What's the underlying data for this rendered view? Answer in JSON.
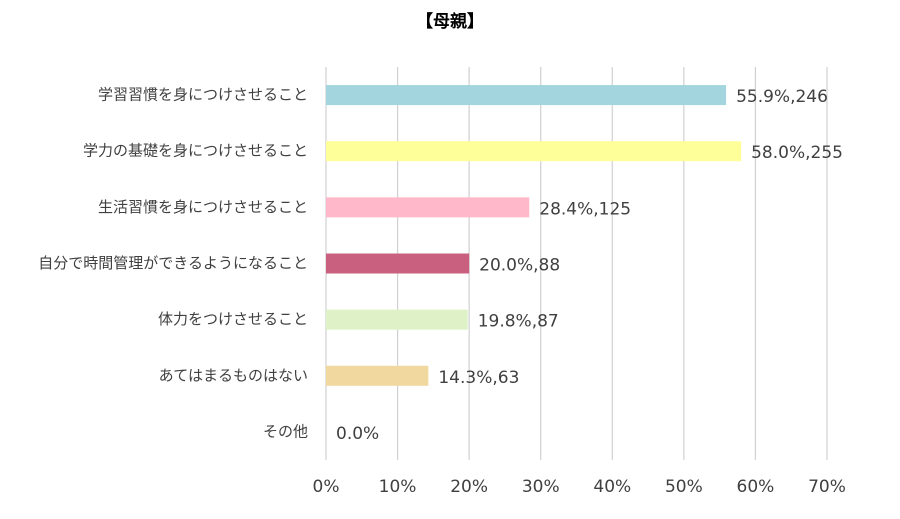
{
  "chart_data": {
    "type": "barh",
    "title": "【母親】",
    "categories": [
      "学習習慣を身につけさせること",
      "学力の基礎を身につけさせること",
      "生活習慣を身につけさせること",
      "自分で時間管理ができるようになること",
      "体力をつけさせること",
      "あてはまるものはない",
      "その他"
    ],
    "values": [
      55.9,
      58.0,
      28.4,
      20.0,
      19.8,
      14.3,
      0.0
    ],
    "value_labels": [
      "55.9%,246",
      "58.0%,255",
      "28.4%,125",
      "20.0%,88",
      "19.8%,87",
      "14.3%,63",
      "0.0%"
    ],
    "colors": [
      "#a3d5de",
      "#ffff99",
      "#ffb8c9",
      "#c9607f",
      "#dff1c6",
      "#f1d89f",
      "#bbbbbb"
    ],
    "xlim": [
      0,
      70
    ],
    "xticks": [
      {
        "value": 0,
        "label": "0%"
      },
      {
        "value": 10,
        "label": "10%"
      },
      {
        "value": 20,
        "label": "20%"
      },
      {
        "value": 30,
        "label": "30%"
      },
      {
        "value": 40,
        "label": "40%"
      },
      {
        "value": 50,
        "label": "50%"
      },
      {
        "value": 60,
        "label": "60%"
      },
      {
        "value": 70,
        "label": "70%"
      }
    ],
    "grid": true
  }
}
